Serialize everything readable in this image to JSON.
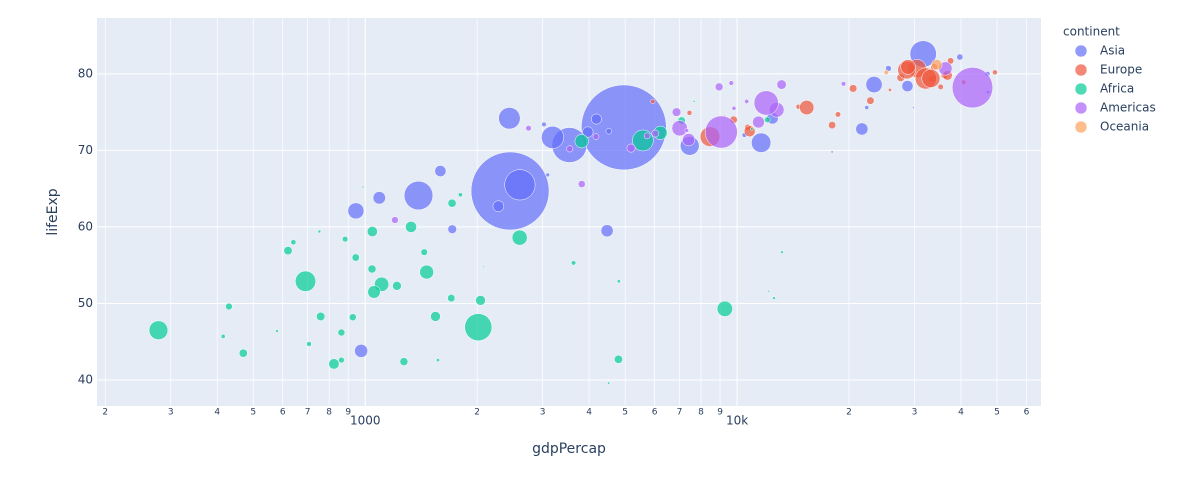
{
  "chart_data": {
    "type": "scatter",
    "x_label": "gdpPercap",
    "y_label": "lifeExp",
    "legend_title": "continent",
    "legend_position": "right",
    "log_x": true,
    "grid": true,
    "xlim": [
      190,
      65650
    ],
    "ylim": [
      36.6,
      87.3
    ],
    "xticks": [
      {
        "value": 200,
        "label": "2"
      },
      {
        "value": 300,
        "label": "3"
      },
      {
        "value": 400,
        "label": "4"
      },
      {
        "value": 500,
        "label": "5"
      },
      {
        "value": 600,
        "label": "6"
      },
      {
        "value": 700,
        "label": "7"
      },
      {
        "value": 800,
        "label": "8"
      },
      {
        "value": 900,
        "label": "9"
      },
      1000,
      {
        "value": 2000,
        "label": "2"
      },
      {
        "value": 3000,
        "label": "3"
      },
      {
        "value": 4000,
        "label": "4"
      },
      {
        "value": 5000,
        "label": "5"
      },
      {
        "value": 6000,
        "label": "6"
      },
      {
        "value": 7000,
        "label": "7"
      },
      {
        "value": 8000,
        "label": "8"
      },
      {
        "value": 9000,
        "label": "9"
      },
      {
        "value": 10000,
        "label": "10k"
      },
      {
        "value": 20000,
        "label": "2"
      },
      {
        "value": 30000,
        "label": "3"
      },
      {
        "value": 40000,
        "label": "4"
      },
      {
        "value": 50000,
        "label": "5"
      },
      {
        "value": 60000,
        "label": "6"
      }
    ],
    "yticks": [
      40,
      50,
      60,
      70,
      80
    ],
    "series": [
      {
        "name": "Asia",
        "color": "#636efa",
        "x": [
          975,
          29796,
          1391,
          1714,
          4959,
          39725,
          2452,
          3541,
          11606,
          4471,
          25523,
          31656,
          4519,
          1593,
          23348,
          47307,
          10461,
          12452,
          3096,
          944,
          1091,
          22316,
          2606,
          3190,
          21655,
          47143,
          3970,
          4185,
          28718,
          7458,
          2442,
          3025,
          2281
        ],
        "y": [
          43.8,
          75.6,
          64.1,
          59.7,
          73.0,
          82.2,
          64.7,
          70.7,
          71.0,
          59.5,
          80.7,
          82.6,
          72.5,
          67.3,
          78.6,
          77.6,
          72.0,
          74.2,
          66.8,
          62.1,
          63.8,
          75.6,
          65.5,
          71.7,
          72.8,
          80.0,
          72.4,
          74.1,
          78.4,
          70.6,
          74.2,
          73.4,
          62.7
        ],
        "size": [
          31.9,
          0.7,
          150.4,
          14.1,
          1318.7,
          7.0,
          1110.4,
          223.5,
          69.5,
          27.5,
          6.4,
          127.5,
          6.1,
          23.3,
          49.0,
          2.5,
          3.9,
          24.8,
          2.9,
          47.8,
          28.9,
          3.2,
          169.3,
          91.1,
          27.6,
          4.6,
          20.4,
          19.3,
          23.2,
          65.1,
          85.3,
          4.0,
          22.2
        ]
      },
      {
        "name": "Europe",
        "color": "#ef553b",
        "x": [
          5937,
          36126,
          33693,
          7446,
          10681,
          14619,
          22833,
          35278,
          33207,
          30470,
          32170,
          27538,
          18009,
          36181,
          40676,
          28570,
          9254,
          36798,
          49357,
          15390,
          20510,
          10808,
          9787,
          18678,
          25768,
          28821,
          33860,
          37506,
          8458,
          33203
        ],
        "y": [
          76.4,
          79.8,
          79.4,
          74.9,
          73.0,
          75.7,
          76.5,
          78.3,
          79.3,
          80.7,
          79.4,
          79.5,
          73.3,
          81.8,
          78.9,
          80.5,
          74.5,
          79.8,
          80.2,
          75.6,
          78.1,
          72.5,
          74.0,
          74.7,
          77.9,
          80.9,
          80.9,
          81.7,
          71.8,
          79.4
        ],
        "size": [
          3.6,
          8.2,
          10.4,
          4.6,
          7.3,
          4.5,
          10.2,
          5.5,
          5.2,
          61.1,
          82.4,
          10.7,
          10.0,
          0.3,
          4.1,
          58.1,
          0.7,
          16.6,
          4.6,
          38.5,
          10.6,
          22.3,
          10.2,
          5.4,
          2.0,
          40.4,
          9.0,
          7.6,
          71.2,
          60.8
        ]
      },
      {
        "name": "Africa",
        "color": "#00cc96",
        "x": [
          6223,
          4797,
          1441,
          12570,
          1217,
          430,
          2042,
          706,
          1704,
          986,
          278,
          3633,
          1545,
          2082,
          5581,
          12154,
          641,
          691,
          13206,
          753,
          1328,
          943,
          579,
          1463,
          1569,
          415,
          12057,
          1045,
          759,
          1043,
          1803,
          10957,
          3820,
          824,
          4811,
          620,
          2014,
          7670,
          863,
          1598,
          1712,
          863,
          926,
          9270,
          2602,
          4513,
          1107,
          883,
          7093,
          1056,
          1271,
          470
        ],
        "y": [
          72.3,
          42.7,
          56.7,
          50.7,
          52.3,
          49.6,
          50.4,
          44.7,
          50.7,
          65.2,
          46.5,
          55.3,
          48.3,
          54.8,
          71.3,
          51.6,
          58.0,
          52.9,
          56.7,
          59.4,
          60.0,
          56.0,
          46.4,
          54.1,
          42.6,
          45.7,
          74.0,
          59.4,
          48.3,
          54.5,
          64.2,
          72.8,
          71.2,
          42.1,
          52.9,
          56.9,
          46.9,
          76.4,
          46.2,
          65.5,
          63.1,
          42.6,
          48.2,
          49.3,
          58.6,
          39.6,
          52.5,
          58.4,
          73.9,
          51.5,
          42.4,
          43.5
        ],
        "size": [
          33.3,
          12.4,
          8.1,
          1.6,
          14.3,
          8.4,
          17.7,
          4.4,
          10.2,
          0.7,
          64.6,
          3.8,
          18.0,
          0.5,
          80.3,
          0.6,
          4.9,
          76.5,
          1.5,
          1.7,
          22.9,
          9.9,
          1.5,
          35.6,
          2.0,
          3.2,
          6.0,
          19.2,
          13.3,
          12.0,
          3.3,
          1.3,
          33.8,
          20.0,
          2.1,
          12.9,
          135.0,
          0.8,
          8.9,
          0.2,
          12.3,
          6.1,
          9.1,
          44.0,
          42.3,
          1.1,
          38.1,
          5.7,
          10.3,
          29.2,
          11.7,
          12.3
        ]
      },
      {
        "name": "Americas",
        "color": "#ab63fa",
        "x": [
          12779,
          3822,
          9066,
          36319,
          13172,
          7007,
          9645,
          8948,
          6025,
          6873,
          5728,
          5186,
          1202,
          3548,
          7321,
          11978,
          2749,
          9809,
          4173,
          7409,
          19329,
          18009,
          42952,
          10611,
          11416
        ],
        "y": [
          75.3,
          65.6,
          72.4,
          80.7,
          78.6,
          72.9,
          78.8,
          78.3,
          72.2,
          75.0,
          71.9,
          70.3,
          60.9,
          70.2,
          72.6,
          76.2,
          72.9,
          75.5,
          71.8,
          71.4,
          78.7,
          69.8,
          78.2,
          76.4,
          73.7
        ],
        "size": [
          40.3,
          9.1,
          190.0,
          33.4,
          16.3,
          44.2,
          4.1,
          11.4,
          9.3,
          13.8,
          6.9,
          12.6,
          8.5,
          7.5,
          2.8,
          108.7,
          5.7,
          3.2,
          6.7,
          28.7,
          3.9,
          1.1,
          301.1,
          3.4,
          26.1
        ]
      },
      {
        "name": "Oceania",
        "color": "#ffa15a",
        "x": [
          34435,
          25185
        ],
        "y": [
          81.2,
          80.2
        ],
        "size": [
          20.4,
          4.1
        ]
      }
    ]
  }
}
